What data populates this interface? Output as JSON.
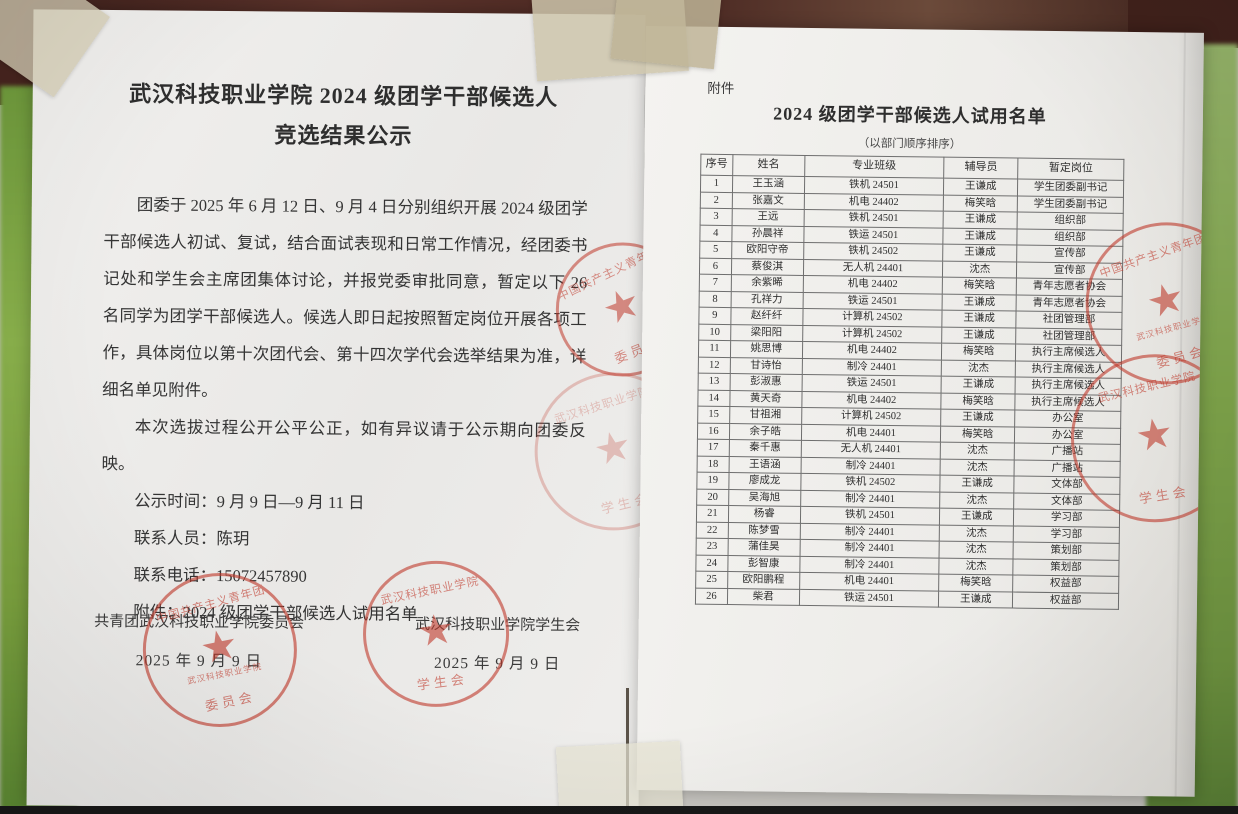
{
  "left_page": {
    "title_line1": "武汉科技职业学院 2024 级团学干部候选人",
    "title_line2": "竞选结果公示",
    "paragraph1": "团委于 2025 年 6 月 12 日、9 月 4 日分别组织开展 2024 级团学干部候选人初试、复试，结合面试表现和日常工作情况，经团委书记处和学生会主席团集体讨论，并报党委审批同意，暂定以下 26 名同学为团学干部候选人。候选人即日起按照暂定岗位开展各项工作，具体岗位以第十次团代会、第十四次学代会选举结果为准，详细名单见附件。",
    "notice_line": "本次选拔过程公开公平公正，如有异议请于公示期向团委反映。",
    "public_time": "公示时间：9 月 9 日—9 月 11 日",
    "contact_person": "联系人员：陈玥",
    "contact_phone": "联系电话：15072457890",
    "attachment_ref": "附件：2024 级团学干部候选人试用名单",
    "sign_left_org": "共青团武汉科技职业学院委员会",
    "sign_left_date": "2025 年 9 月 9 日",
    "sign_right_org": "武汉科技职业学院学生会",
    "sign_right_date": "2025 年 9 月 9 日"
  },
  "right_page": {
    "attachment_label": "附件",
    "title": "2024 级团学干部候选人试用名单",
    "subtitle": "（以部门顺序排序）",
    "table": {
      "headers": [
        "序号",
        "姓名",
        "专业班级",
        "辅导员",
        "暂定岗位"
      ],
      "rows": [
        [
          "1",
          "王玉涵",
          "铁机 24501",
          "王谦成",
          "学生团委副书记"
        ],
        [
          "2",
          "张嘉文",
          "机电 24402",
          "梅笑晗",
          "学生团委副书记"
        ],
        [
          "3",
          "王远",
          "铁机 24501",
          "王谦成",
          "组织部"
        ],
        [
          "4",
          "孙晨祥",
          "铁运 24501",
          "王谦成",
          "组织部"
        ],
        [
          "5",
          "欧阳守帝",
          "铁机 24502",
          "王谦成",
          "宣传部"
        ],
        [
          "6",
          "蔡俊淇",
          "无人机 24401",
          "沈杰",
          "宣传部"
        ],
        [
          "7",
          "余紫晞",
          "机电 24402",
          "梅笑晗",
          "青年志愿者协会"
        ],
        [
          "8",
          "孔祥力",
          "铁运 24501",
          "王谦成",
          "青年志愿者协会"
        ],
        [
          "9",
          "赵纤纤",
          "计算机 24502",
          "王谦成",
          "社团管理部"
        ],
        [
          "10",
          "梁阳阳",
          "计算机 24502",
          "王谦成",
          "社团管理部"
        ],
        [
          "11",
          "姚思博",
          "机电 24402",
          "梅笑晗",
          "执行主席候选人"
        ],
        [
          "12",
          "甘诗怡",
          "制冷 24401",
          "沈杰",
          "执行主席候选人"
        ],
        [
          "13",
          "彭淑惠",
          "铁运 24501",
          "王谦成",
          "执行主席候选人"
        ],
        [
          "14",
          "黄天奇",
          "机电 24402",
          "梅笑晗",
          "执行主席候选人"
        ],
        [
          "15",
          "甘祖湘",
          "计算机 24502",
          "王谦成",
          "办公室"
        ],
        [
          "16",
          "余子皓",
          "机电 24401",
          "梅笑晗",
          "办公室"
        ],
        [
          "17",
          "秦千惠",
          "无人机 24401",
          "沈杰",
          "广播站"
        ],
        [
          "18",
          "王语涵",
          "制冷 24401",
          "沈杰",
          "广播站"
        ],
        [
          "19",
          "廖成龙",
          "铁机 24502",
          "王谦成",
          "文体部"
        ],
        [
          "20",
          "吴海旭",
          "制冷 24401",
          "沈杰",
          "文体部"
        ],
        [
          "21",
          "杨睿",
          "铁机 24501",
          "王谦成",
          "学习部"
        ],
        [
          "22",
          "陈梦雪",
          "制冷 24401",
          "沈杰",
          "学习部"
        ],
        [
          "23",
          "蒲佳昊",
          "制冷 24401",
          "沈杰",
          "策划部"
        ],
        [
          "24",
          "彭智康",
          "制冷 24401",
          "沈杰",
          "策划部"
        ],
        [
          "25",
          "欧阳鹏程",
          "机电 24401",
          "梅笑晗",
          "权益部"
        ],
        [
          "26",
          "柴君",
          "铁运 24501",
          "王谦成",
          "权益部"
        ]
      ]
    }
  },
  "stamps": {
    "league_committee": {
      "arc_top": "中国共产主义青年团",
      "mid": "武汉科技职业学院",
      "arc_bottom": "委员会",
      "star": "★"
    },
    "student_union": {
      "arc_top": "武汉科技职业学院",
      "mid": "",
      "arc_bottom": "学生会",
      "star": "★"
    }
  },
  "colors": {
    "stamp_red": "#c0392b",
    "paper": "#f0efec",
    "brick": "#46231e",
    "foliage": "#7fa844"
  }
}
